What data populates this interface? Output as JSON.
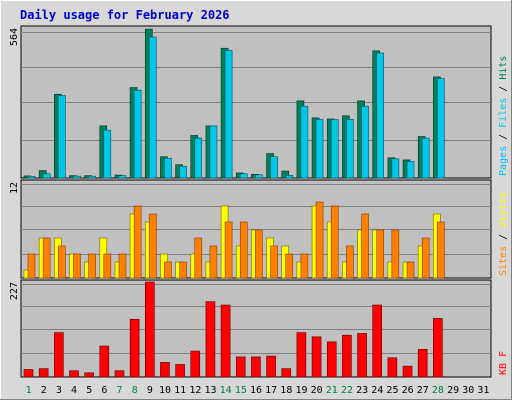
{
  "title": "Daily usage for February 2026",
  "colors": {
    "background": "#d8d8d8",
    "plot_bg": "#c0c0c0",
    "title": "#0000cc",
    "hits": "#00805c",
    "files": "#00c8e8",
    "pages": "#00c0ff",
    "visits": "#ffff00",
    "sites": "#ff8000",
    "kbytes": "#ff0000",
    "day_weekend": "#008040",
    "day_weekday": "#000000"
  },
  "chart_data": [
    {
      "type": "bar",
      "panel": "hits-files-pages",
      "ymax_label": "564",
      "legend": [
        "Pages",
        "/",
        "Files",
        "/",
        "Hits"
      ],
      "categories": [
        "1",
        "2",
        "3",
        "4",
        "5",
        "6",
        "7",
        "8",
        "9",
        "10",
        "11",
        "12",
        "13",
        "14",
        "15",
        "16",
        "17",
        "18",
        "19",
        "20",
        "21",
        "22",
        "23",
        "24",
        "25",
        "26",
        "27",
        "28",
        "29",
        "30",
        "31"
      ],
      "ylim": [
        0,
        564
      ],
      "series": [
        {
          "name": "Hits",
          "values": [
            8,
            28,
            315,
            9,
            9,
            196,
            11,
            340,
            560,
            80,
            50,
            160,
            196,
            488,
            19,
            14,
            92,
            26,
            290,
            226,
            222,
            234,
            290,
            478,
            76,
            68,
            156,
            380,
            0,
            0,
            0
          ]
        },
        {
          "name": "Files",
          "values": [
            6,
            16,
            310,
            7,
            7,
            180,
            9,
            330,
            530,
            74,
            44,
            150,
            196,
            480,
            16,
            12,
            80,
            10,
            270,
            220,
            220,
            220,
            270,
            470,
            72,
            62,
            150,
            374,
            0,
            0,
            0
          ]
        }
      ]
    },
    {
      "type": "bar",
      "panel": "visits-sites",
      "ymax_label": "12",
      "legend": [
        "Sites",
        "/",
        "Visits"
      ],
      "ylim": [
        0,
        12
      ],
      "series": [
        {
          "name": "Visits",
          "values": [
            1,
            5,
            5,
            3,
            2,
            5,
            2,
            8,
            7,
            3,
            2,
            3,
            2,
            9,
            4,
            6,
            5,
            4,
            2,
            9,
            7,
            2,
            6,
            6,
            2,
            2,
            4,
            8,
            0,
            0,
            0
          ]
        },
        {
          "name": "Sites",
          "values": [
            3,
            5,
            4,
            3,
            3,
            3,
            3,
            9,
            8,
            2,
            2,
            5,
            4,
            7,
            7,
            6,
            4,
            3,
            3,
            9.5,
            9,
            4,
            8,
            6,
            6,
            2,
            5,
            7,
            0,
            0,
            0
          ]
        }
      ]
    },
    {
      "type": "bar",
      "panel": "kbytes",
      "ymax_label": "227",
      "legend": [
        "KB",
        "F"
      ],
      "ylim": [
        0,
        227
      ],
      "series": [
        {
          "name": "KB F",
          "values": [
            18,
            20,
            106,
            15,
            10,
            74,
            15,
            138,
            227,
            35,
            30,
            62,
            180,
            172,
            48,
            48,
            50,
            20,
            106,
            96,
            84,
            100,
            104,
            172,
            46,
            26,
            66,
            140,
            0,
            0,
            0
          ]
        }
      ]
    }
  ],
  "days": [
    {
      "label": "1",
      "weekend": true
    },
    {
      "label": "2",
      "weekend": false
    },
    {
      "label": "3",
      "weekend": false
    },
    {
      "label": "4",
      "weekend": false
    },
    {
      "label": "5",
      "weekend": false
    },
    {
      "label": "6",
      "weekend": false
    },
    {
      "label": "7",
      "weekend": true
    },
    {
      "label": "8",
      "weekend": true
    },
    {
      "label": "9",
      "weekend": false
    },
    {
      "label": "10",
      "weekend": false
    },
    {
      "label": "11",
      "weekend": false
    },
    {
      "label": "12",
      "weekend": false
    },
    {
      "label": "13",
      "weekend": false
    },
    {
      "label": "14",
      "weekend": true
    },
    {
      "label": "15",
      "weekend": true
    },
    {
      "label": "16",
      "weekend": false
    },
    {
      "label": "17",
      "weekend": false
    },
    {
      "label": "18",
      "weekend": false
    },
    {
      "label": "19",
      "weekend": false
    },
    {
      "label": "20",
      "weekend": false
    },
    {
      "label": "21",
      "weekend": true
    },
    {
      "label": "22",
      "weekend": true
    },
    {
      "label": "23",
      "weekend": false
    },
    {
      "label": "24",
      "weekend": false
    },
    {
      "label": "25",
      "weekend": false
    },
    {
      "label": "26",
      "weekend": false
    },
    {
      "label": "27",
      "weekend": false
    },
    {
      "label": "28",
      "weekend": true
    },
    {
      "label": "29",
      "weekend": false
    },
    {
      "label": "30",
      "weekend": false
    },
    {
      "label": "31",
      "weekend": false
    }
  ]
}
